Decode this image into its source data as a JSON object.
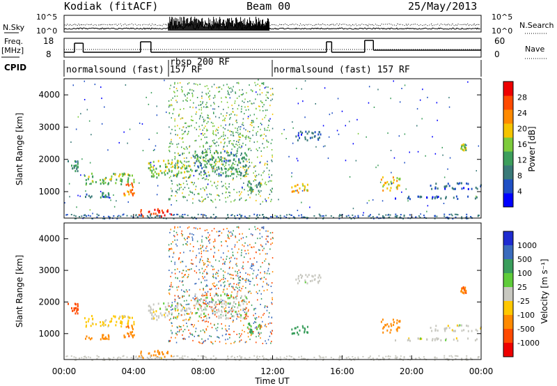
{
  "header": {
    "station": "Kodiak (fitACF)",
    "beam": "Beam 00",
    "date": "25/May/2013"
  },
  "noise_panel": {
    "left_label": "N.Sky",
    "right_label": "N.Search",
    "left_ticks": [
      "10^5",
      "10^0"
    ],
    "right_ticks": [
      "10^5",
      "10^0"
    ]
  },
  "freq_panel": {
    "left_label_1": "Freq.",
    "left_label_2": "[MHz]",
    "right_label": "Nave",
    "left_ticks": [
      "18",
      "8"
    ],
    "right_ticks": [
      "60",
      "0"
    ]
  },
  "cpid": {
    "label": "CPID",
    "segments": [
      {
        "text": "normalsound (fast) 157 RF",
        "start_hour": 0.0,
        "end_hour": 6.0
      },
      {
        "text": "rbsp 200 RF",
        "start_hour": 6.0,
        "end_hour": 12.0
      },
      {
        "text": "normalsound (fast) 157 RF",
        "start_hour": 12.0,
        "end_hour": 24.0
      }
    ]
  },
  "power_panel": {
    "ylabel": "Slant Range [km]",
    "yticks": [
      "4000",
      "3000",
      "2000",
      "1000"
    ],
    "colorbar_label": "Power [dB]",
    "colorbar_ticks": [
      "28",
      "24",
      "20",
      "16",
      "12",
      "8",
      "4"
    ],
    "colorbar_colors": [
      "#0000ff",
      "#1f4fc4",
      "#3a7a78",
      "#3d9e5c",
      "#7dcb3c",
      "#f5c400",
      "#ff8a00",
      "#ff4a00",
      "#ee0000"
    ]
  },
  "velocity_panel": {
    "ylabel": "Slant Range [km]",
    "yticks": [
      "4000",
      "3000",
      "2000",
      "1000"
    ],
    "colorbar_label": "Velocity [m s⁻¹]",
    "colorbar_ticks": [
      "1000",
      "500",
      "100",
      "25",
      "-25",
      "-100",
      "-500",
      "-1000"
    ],
    "colorbar_colors": [
      "#1e2bd0",
      "#3a6bbd",
      "#3a9e5c",
      "#5fcc3a",
      "#c8c8c0",
      "#ffc800",
      "#ff8a00",
      "#ff4a00",
      "#ee0000"
    ]
  },
  "xaxis": {
    "label": "Time UT",
    "ticks": [
      "00:00",
      "04:00",
      "08:00",
      "12:00",
      "16:00",
      "20:00",
      "00:00"
    ]
  },
  "chart_data": {
    "type": "heatmap",
    "title": "Kodiak (fitACF) Beam 00 25/May/2013",
    "xlabel": "Time UT",
    "ylabel": "Slant Range [km]",
    "xlim_hours": [
      0,
      24
    ],
    "ylim_km": [
      180,
      4500
    ],
    "panels": [
      "Power [dB]",
      "Velocity [m s⁻¹]"
    ],
    "power_range_db": [
      0,
      30
    ],
    "velocity_levels": [
      -1000,
      -500,
      -100,
      -25,
      25,
      100,
      500,
      1000
    ],
    "echo_regions": [
      {
        "t0": 0.2,
        "t1": 0.8,
        "r0": 1650,
        "r1": 2000,
        "power": 10,
        "velocity": -600
      },
      {
        "t0": 1.0,
        "t1": 4.0,
        "r0": 1250,
        "r1": 1600,
        "power": 14,
        "velocity": -50
      },
      {
        "t0": 1.2,
        "t1": 2.6,
        "r0": 850,
        "r1": 1000,
        "power": 8,
        "velocity": -300
      },
      {
        "t0": 3.4,
        "t1": 4.0,
        "r0": 900,
        "r1": 1300,
        "power": 22,
        "velocity": -400
      },
      {
        "t0": 4.2,
        "t1": 6.2,
        "r0": 250,
        "r1": 500,
        "power": 26,
        "velocity": -150
      },
      {
        "t0": 4.8,
        "t1": 7.3,
        "r0": 1450,
        "r1": 2000,
        "power": 15,
        "velocity": 0
      },
      {
        "t0": 7.5,
        "t1": 10.5,
        "r0": 1500,
        "r1": 2300,
        "power": 10,
        "velocity": 5
      },
      {
        "t0": 10.5,
        "t1": 11.4,
        "r0": 1000,
        "r1": 1400,
        "power": 10,
        "velocity": 120
      },
      {
        "t0": 13.0,
        "t1": 14.0,
        "r0": 950,
        "r1": 1300,
        "power": 20,
        "velocity": 200
      },
      {
        "t0": 13.2,
        "t1": 14.9,
        "r0": 2600,
        "r1": 2900,
        "power": 6,
        "velocity": 0
      },
      {
        "t0": 18.2,
        "t1": 19.3,
        "r0": 1050,
        "r1": 1500,
        "power": 18,
        "velocity": -200
      },
      {
        "t0": 19.0,
        "t1": 24.0,
        "r0": 800,
        "r1": 900,
        "power": 6,
        "velocity": 0
      },
      {
        "t0": 21.0,
        "t1": 24.0,
        "r0": 1100,
        "r1": 1300,
        "power": 6,
        "velocity": 0
      },
      {
        "t0": 22.8,
        "t1": 23.1,
        "r0": 2300,
        "r1": 2500,
        "power": 16,
        "velocity": -500
      }
    ]
  }
}
